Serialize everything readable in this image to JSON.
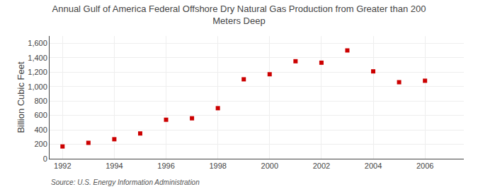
{
  "chart_data": {
    "type": "scatter",
    "title": "Annual Gulf of America Federal Offshore Dry Natural Gas Production from Greater than 200\nMeters Deep",
    "y_label": "Billion Cubic Feet",
    "annotations": [
      "Source: U.S. Energy Information Administration"
    ],
    "x": [
      1992,
      1993,
      1994,
      1995,
      1996,
      1997,
      1998,
      1999,
      2000,
      2001,
      2002,
      2003,
      2004,
      2005,
      2006
    ],
    "values": [
      170,
      220,
      270,
      350,
      540,
      560,
      700,
      1100,
      1170,
      1350,
      1330,
      1500,
      1210,
      1060,
      1080
    ],
    "color": "#cc0000",
    "marker": "square",
    "xlim": [
      1991.5,
      2007.5
    ],
    "xticks": [
      1992,
      1994,
      1996,
      1998,
      2000,
      2002,
      2004,
      2006
    ],
    "ylim": [
      0,
      1700
    ],
    "yticks": [
      0,
      200,
      400,
      600,
      800,
      {
        "value": 1000,
        "label": "1,000"
      },
      {
        "value": 1200,
        "label": "1,200"
      },
      {
        "value": 1400,
        "label": "1,400"
      },
      {
        "value": 1600,
        "label": "1,600"
      }
    ],
    "grid": true
  }
}
